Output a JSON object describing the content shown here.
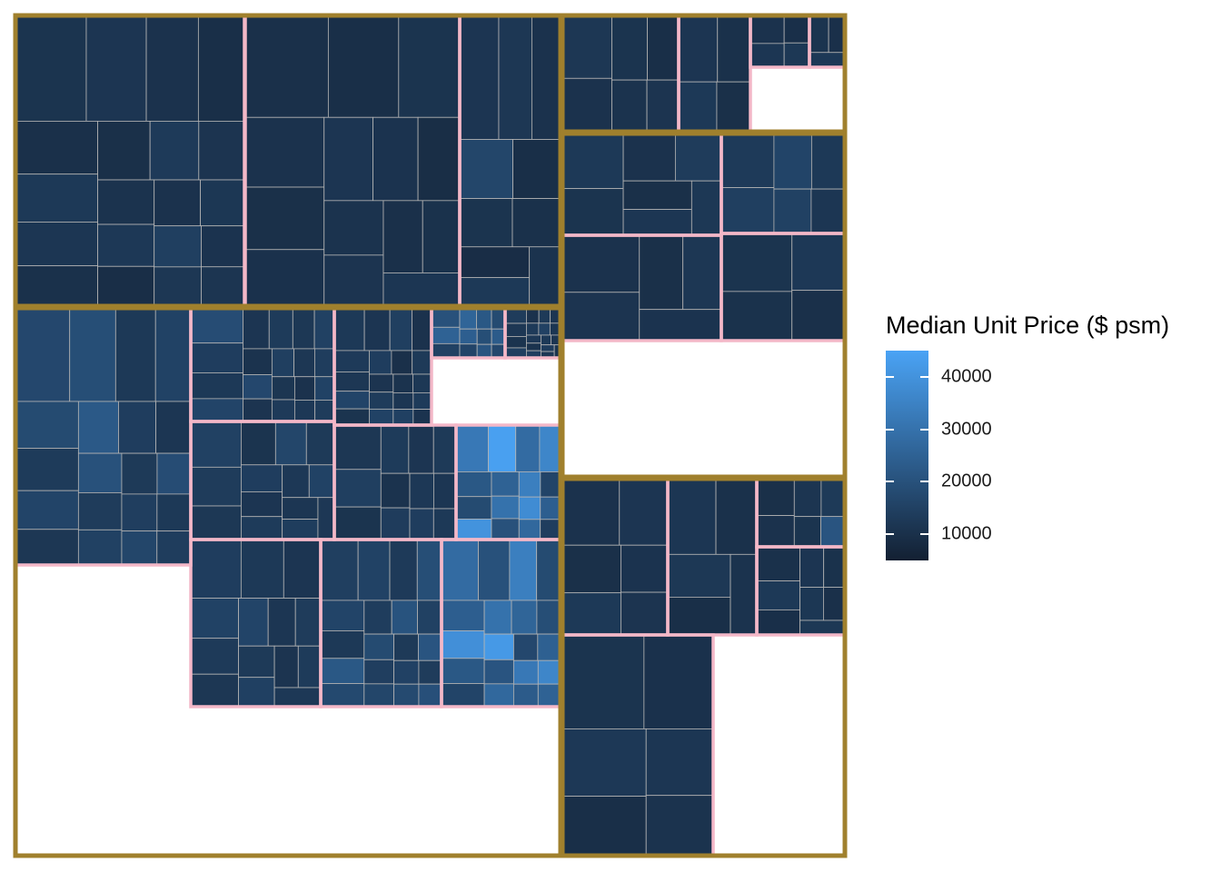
{
  "chart_data": {
    "type": "treemap",
    "legend": {
      "title": "Median Unit Price ($ psm)",
      "ticks": [
        10000,
        20000,
        30000,
        40000
      ],
      "range": [
        5000,
        45000
      ],
      "colors": {
        "low": "#132032",
        "high": "#4aa3f5"
      }
    },
    "colors": {
      "region_border": "#a0802d",
      "planning_area_border": "#f4b8c8",
      "cell_border": "#b4b4b4"
    },
    "regions": [
      {
        "planning_areas": [
          {
            "median_psm_cells": [
              11000,
              11500,
              10500,
              9500,
              10000,
              12500,
              11800,
              10200,
              9800,
              13000,
              11200,
              10800,
              12300,
              9400,
              10600,
              11900,
              14500,
              12000,
              10900,
              11300
            ]
          },
          {
            "median_psm_cells": [
              10000,
              9500,
              11000,
              10500,
              9800,
              10300,
              11500,
              10900,
              9200,
              10700,
              11200,
              9900,
              10400,
              11800
            ]
          },
          {
            "median_psm_cells": [
              11500,
              12000,
              10500,
              16500,
              9500,
              11000,
              10200,
              9000,
              12500,
              10800
            ]
          }
        ]
      },
      {
        "planning_areas": [
          {
            "median_psm_cells": [
              12000,
              10500,
              11000,
              9500,
              10800,
              11200
            ]
          },
          {
            "median_psm_cells": [
              11500,
              10200,
              12500,
              9800
            ]
          },
          {
            "median_psm_cells": [
              10500,
              11800,
              9700,
              12200
            ]
          },
          {
            "median_psm_cells": [
              11000,
              10000,
              12400
            ]
          }
        ]
      },
      {
        "planning_areas": [
          {
            "median_psm_cells": [
              12500,
              11000,
              10500,
              13500,
              9800,
              11700,
              12200
            ]
          },
          {
            "median_psm_cells": [
              13000,
              14500,
              16000,
              12500,
              15000,
              11800
            ]
          },
          {
            "median_psm_cells": [
              10500,
              11200,
              9800,
              12000,
              10900
            ]
          },
          {
            "median_psm_cells": [
              11000,
              10400,
              12300,
              9900
            ]
          }
        ]
      },
      {
        "planning_areas": [
          {
            "median_psm_cells": [
              10500,
              11500,
              9800,
              12500,
              10900,
              11200
            ]
          },
          {
            "median_psm_cells": [
              11800,
              10200,
              12200,
              9600,
              10800
            ]
          },
          {
            "median_psm_cells": [
              9800,
              10600,
              11400,
              12800,
              11000,
              21000
            ]
          },
          {
            "median_psm_cells": [
              10200,
              12500,
              9700,
              11500,
              10400,
              11900,
              9900,
              12200
            ]
          },
          {
            "median_psm_cells": [
              11000,
              10300,
              12400,
              9500,
              11700,
              10800
            ]
          }
        ]
      },
      {
        "planning_areas": [
          {
            "median_psm_cells": [
              17000,
              19000,
              12500,
              15500,
              18000,
              13200,
              16000,
              12000,
              22500,
              14000,
              11800,
              20000,
              13500,
              15000,
              12800,
              18500,
              14200,
              12600,
              16500,
              13800
            ]
          },
          {
            "median_psm_cells": [
              18500,
              14000,
              12500,
              16000,
              11500,
              13200,
              12200,
              15000,
              10800,
              17000,
              11200,
              14500,
              12000,
              13800,
              11600,
              12900,
              10500,
              15500,
              12400,
              13500
            ]
          },
          {
            "median_psm_cells": [
              12500,
              11500,
              14500,
              10500,
              13000,
              12000,
              16000,
              11000,
              14000,
              10000,
              12800,
              11200,
              13500,
              15500,
              10800,
              12200,
              11800,
              14800,
              13200,
              10900
            ]
          },
          {
            "median_psm_cells": [
              20000,
              25000,
              15000,
              26000,
              22000,
              18000,
              24000,
              16000,
              19000,
              23000,
              21000,
              17000
            ]
          },
          {
            "median_psm_cells": [
              13500,
              12000,
              11000,
              14500,
              10500,
              12800,
              11500,
              13000,
              15000,
              11800,
              12400,
              10800,
              14200,
              12600,
              11300,
              13700,
              12200,
              11000
            ]
          },
          {
            "median_psm_cells": [
              15000,
              13500,
              12200,
              11000,
              16500,
              12800,
              14000,
              11500,
              13200,
              12400,
              15500,
              11800,
              13800,
              12100
            ]
          },
          {
            "median_psm_cells": [
              12000,
              14500,
              11000,
              13200,
              11500,
              12800,
              10800,
              13600,
              12300,
              11700,
              14000,
              12600
            ]
          },
          {
            "median_psm_cells": [
              32000,
              44000,
              28000,
              36000,
              22000,
              18000,
              40000,
              25000,
              30000,
              20000,
              34000,
              16000,
              38000,
              24000,
              27000,
              14000
            ]
          },
          {
            "median_psm_cells": [
              14000,
              12500,
              11500,
              15500,
              13000,
              12000,
              16000,
              11800,
              13500,
              12800,
              14800,
              11200,
              13200,
              12400
            ]
          },
          {
            "median_psm_cells": [
              14500,
              15500,
              13000,
              19000,
              16000,
              12500,
              22000,
              17500,
              13800,
              20500,
              15000,
              18000,
              14200,
              16500,
              12800,
              21000,
              15200,
              17800,
              13400,
              19500
            ]
          },
          {
            "median_psm_cells": [
              28000,
              20000,
              34000,
              18000,
              24000,
              39000,
              22000,
              16000,
              30000,
              26000,
              19000,
              42000,
              21000,
              27000,
              17000,
              24500,
              32000,
              23000,
              36000,
              25000
            ]
          }
        ]
      }
    ]
  }
}
